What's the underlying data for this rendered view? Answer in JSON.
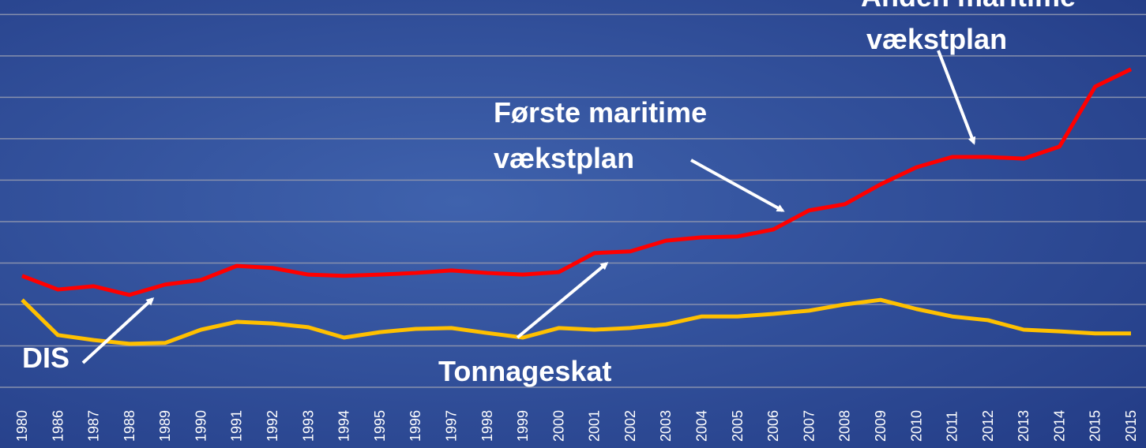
{
  "chart_data": {
    "type": "line",
    "categories": [
      "1980",
      "1986",
      "1987",
      "1988",
      "1989",
      "1990",
      "1991",
      "1992",
      "1993",
      "1994",
      "1995",
      "1996",
      "1997",
      "1998",
      "1999",
      "2000",
      "2001",
      "2002",
      "2003",
      "2004",
      "2005",
      "2006",
      "2007",
      "2008",
      "2009",
      "2010",
      "2011",
      "2012",
      "2013",
      "2014",
      "2015",
      "2015"
    ],
    "series": [
      {
        "color": "#ff0000",
        "values": [
          2.69,
          2.36,
          2.44,
          2.23,
          2.48,
          2.59,
          2.93,
          2.88,
          2.72,
          2.69,
          2.72,
          2.76,
          2.82,
          2.76,
          2.72,
          2.78,
          3.24,
          3.28,
          3.54,
          3.62,
          3.64,
          3.81,
          4.27,
          4.42,
          4.9,
          5.31,
          5.56,
          5.56,
          5.52,
          5.81,
          7.26,
          7.68
        ]
      },
      {
        "color": "#ffc000",
        "values": [
          2.11,
          1.26,
          1.14,
          1.05,
          1.07,
          1.39,
          1.58,
          1.54,
          1.45,
          1.2,
          1.33,
          1.41,
          1.43,
          1.31,
          1.2,
          1.43,
          1.39,
          1.43,
          1.52,
          1.71,
          1.71,
          1.77,
          1.85,
          2.0,
          2.11,
          1.89,
          1.71,
          1.62,
          1.39,
          1.35,
          1.3,
          1.3
        ]
      }
    ],
    "ylim": [
      0,
      9.35
    ],
    "yticks": [
      0,
      1,
      2,
      3,
      4,
      5,
      6,
      7,
      8,
      9
    ],
    "grid": true,
    "annotations": [
      "DIS",
      "Tonnageskat",
      "Første maritime",
      "vækstplan",
      "Anden maritime",
      "vækstplan"
    ]
  }
}
